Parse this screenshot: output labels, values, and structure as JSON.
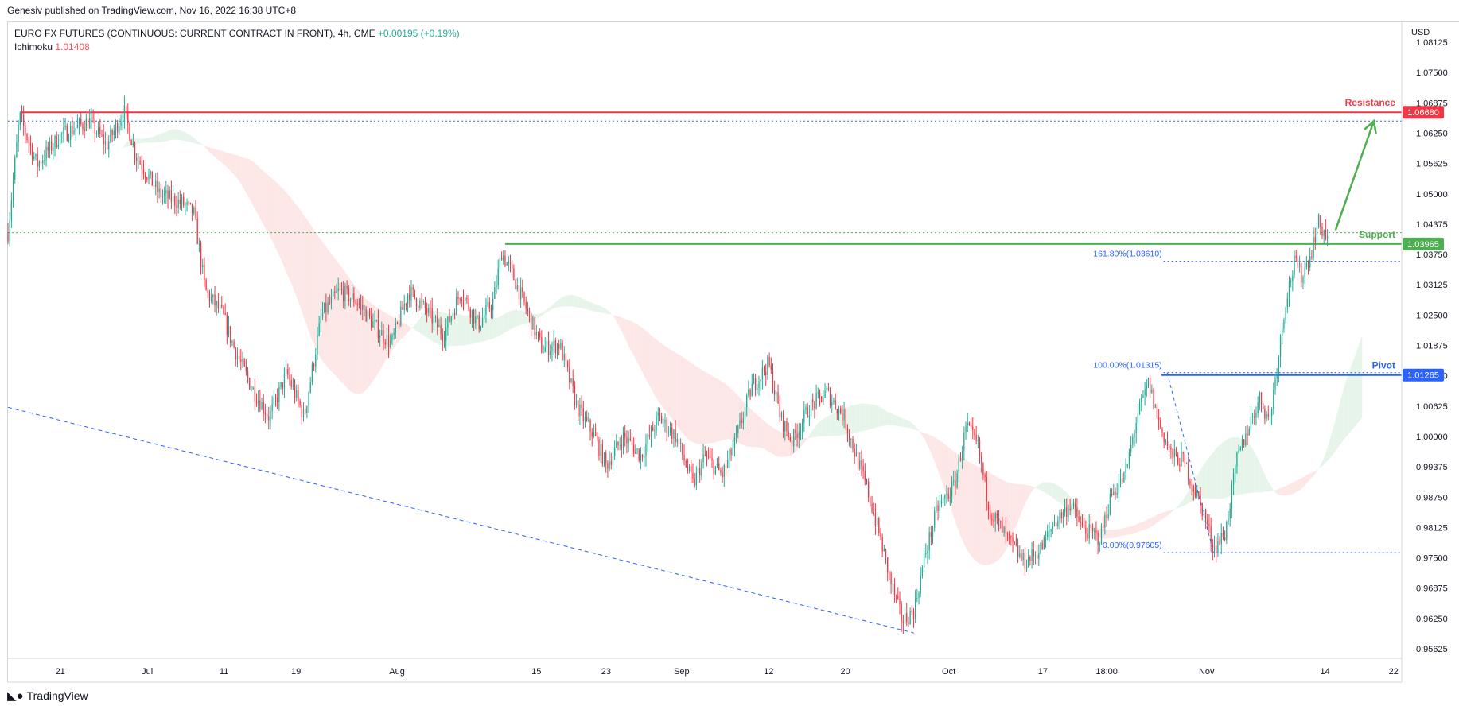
{
  "header": {
    "publisher": "Genesiv published on TradingView.com, Nov 16, 2022 16:38 UTC+8"
  },
  "legend": {
    "symbol": "EURO FX FUTURES (CONTINUOUS: CURRENT CONTRACT IN FRONT), 4h, CME",
    "change": "+0.00195 (+0.19%)",
    "indicator_name": "Ichimoku",
    "indicator_value": "1.01408"
  },
  "footer": {
    "brand": "TradingView"
  },
  "colors": {
    "up": "#22ab94",
    "down": "#f23645",
    "resistance": "#f23645",
    "support": "#4caf50",
    "pivot": "#2962ff",
    "fib": "#2962ff",
    "cloud_bull": "#e6f4ea",
    "cloud_bear": "#fde6e6"
  },
  "chart_data": {
    "type": "candlestick",
    "timeframe": "4h",
    "currency_label": "USD",
    "ylim": [
      0.95625,
      1.08125
    ],
    "y_ticks": [
      "1.08125",
      "1.07500",
      "1.06875",
      "1.06250",
      "1.05625",
      "1.05000",
      "1.04375",
      "1.03750",
      "1.03125",
      "1.02500",
      "1.01875",
      "1.01250",
      "1.00625",
      "1.00000",
      "0.99375",
      "0.98750",
      "0.98125",
      "0.97500",
      "0.96875",
      "0.96250",
      "0.95625"
    ],
    "x_ticks": [
      {
        "label": "21",
        "t": 0.045
      },
      {
        "label": "Jul",
        "t": 0.12
      },
      {
        "label": "11",
        "t": 0.186
      },
      {
        "label": "19",
        "t": 0.248
      },
      {
        "label": "Aug",
        "t": 0.335
      },
      {
        "label": "15",
        "t": 0.455
      },
      {
        "label": "23",
        "t": 0.515
      },
      {
        "label": "Sep",
        "t": 0.58
      },
      {
        "label": "12",
        "t": 0.655
      },
      {
        "label": "20",
        "t": 0.721
      },
      {
        "label": "Oct",
        "t": 0.81
      },
      {
        "label": "17",
        "t": 0.891
      },
      {
        "label": "18:00",
        "t": 0.946
      },
      {
        "label": "Nov",
        "t": 1.032
      },
      {
        "label": "14",
        "t": 1.134
      },
      {
        "label": "22",
        "t": 1.193
      }
    ],
    "price_path": [
      [
        0.0,
        1.042
      ],
      [
        0.01,
        1.066
      ],
      [
        0.025,
        1.056
      ],
      [
        0.045,
        1.062
      ],
      [
        0.07,
        1.065
      ],
      [
        0.085,
        1.06
      ],
      [
        0.1,
        1.067
      ],
      [
        0.11,
        1.058
      ],
      [
        0.13,
        1.05
      ],
      [
        0.15,
        1.048
      ],
      [
        0.16,
        1.046
      ],
      [
        0.17,
        1.03
      ],
      [
        0.185,
        1.025
      ],
      [
        0.195,
        1.018
      ],
      [
        0.21,
        1.01
      ],
      [
        0.225,
        1.004
      ],
      [
        0.24,
        1.013
      ],
      [
        0.255,
        1.004
      ],
      [
        0.27,
        1.025
      ],
      [
        0.285,
        1.03
      ],
      [
        0.3,
        1.028
      ],
      [
        0.315,
        1.023
      ],
      [
        0.33,
        1.019
      ],
      [
        0.345,
        1.03
      ],
      [
        0.36,
        1.026
      ],
      [
        0.375,
        1.021
      ],
      [
        0.39,
        1.03
      ],
      [
        0.405,
        1.023
      ],
      [
        0.418,
        1.028
      ],
      [
        0.425,
        1.038
      ],
      [
        0.435,
        1.033
      ],
      [
        0.445,
        1.027
      ],
      [
        0.46,
        1.018
      ],
      [
        0.475,
        1.019
      ],
      [
        0.49,
        1.006
      ],
      [
        0.505,
        1.0
      ],
      [
        0.515,
        0.994
      ],
      [
        0.53,
        1.0
      ],
      [
        0.545,
        0.996
      ],
      [
        0.56,
        1.004
      ],
      [
        0.575,
        1.0
      ],
      [
        0.59,
        0.99
      ],
      [
        0.6,
        0.996
      ],
      [
        0.615,
        0.992
      ],
      [
        0.625,
        0.998
      ],
      [
        0.64,
        1.01
      ],
      [
        0.655,
        1.015
      ],
      [
        0.665,
        1.004
      ],
      [
        0.675,
        0.999
      ],
      [
        0.69,
        1.006
      ],
      [
        0.705,
        1.009
      ],
      [
        0.72,
        1.004
      ],
      [
        0.73,
        0.996
      ],
      [
        0.74,
        0.989
      ],
      [
        0.75,
        0.98
      ],
      [
        0.76,
        0.97
      ],
      [
        0.77,
        0.962
      ],
      [
        0.78,
        0.964
      ],
      [
        0.79,
        0.976
      ],
      [
        0.8,
        0.985
      ],
      [
        0.815,
        0.99
      ],
      [
        0.825,
        1.002
      ],
      [
        0.835,
        0.998
      ],
      [
        0.845,
        0.985
      ],
      [
        0.86,
        0.979
      ],
      [
        0.875,
        0.974
      ],
      [
        0.89,
        0.977
      ],
      [
        0.9,
        0.982
      ],
      [
        0.915,
        0.986
      ],
      [
        0.925,
        0.981
      ],
      [
        0.94,
        0.979
      ],
      [
        0.95,
        0.988
      ],
      [
        0.962,
        0.992
      ],
      [
        0.972,
        1.004
      ],
      [
        0.982,
        1.011
      ],
      [
        0.992,
        1.002
      ],
      [
        1.002,
        0.996
      ],
      [
        1.012,
        0.995
      ],
      [
        1.02,
        0.99
      ],
      [
        1.03,
        0.984
      ],
      [
        1.038,
        0.977
      ],
      [
        1.048,
        0.98
      ],
      [
        1.058,
        0.995
      ],
      [
        1.068,
        1.002
      ],
      [
        1.078,
        1.008
      ],
      [
        1.086,
        1.003
      ],
      [
        1.094,
        1.017
      ],
      [
        1.1,
        1.028
      ],
      [
        1.108,
        1.036
      ],
      [
        1.114,
        1.033
      ],
      [
        1.122,
        1.038
      ],
      [
        1.128,
        1.044
      ],
      [
        1.136,
        1.041
      ]
    ],
    "ichimoku_value": 1.01408,
    "levels": [
      {
        "name": "Resistance",
        "label": "Resistance",
        "price": 1.0668,
        "price_label": "1.06680",
        "style": "solid",
        "from_t": 0.012,
        "color": "#f23645"
      },
      {
        "name": "Support",
        "label": "Support",
        "price": 1.03965,
        "price_label": "1.03965",
        "style": "solid",
        "from_t": 0.428,
        "color": "#4caf50"
      },
      {
        "name": "Pivot",
        "label": "Pivot",
        "price": 1.01265,
        "price_label": "1.01265",
        "style": "solid",
        "from_t": 0.993,
        "color": "#2962ff"
      }
    ],
    "fibonacci": [
      {
        "label": "161.80%(1.03610)",
        "price": 1.0361,
        "from_t": 0.995
      },
      {
        "label": "100.00%(1.01315)",
        "price": 1.01315,
        "from_t": 0.995
      },
      {
        "label": "0.00%(0.97605)",
        "price": 0.97605,
        "from_t": 0.995
      }
    ],
    "dotted_levels": [
      {
        "price": 1.065,
        "from_t": 0.0,
        "color": "#2962ff"
      },
      {
        "price": 1.042,
        "from_t": 0.0,
        "color": "#4caf50"
      }
    ],
    "trendline": {
      "from": [
        0.0,
        1.006
      ],
      "to": [
        0.78,
        0.9595
      ],
      "style": "dashed",
      "color": "#2962ff"
    },
    "projection_arrow": {
      "from": [
        1.143,
        1.0425
      ],
      "to": [
        1.176,
        1.065
      ],
      "color": "#4caf50"
    }
  }
}
